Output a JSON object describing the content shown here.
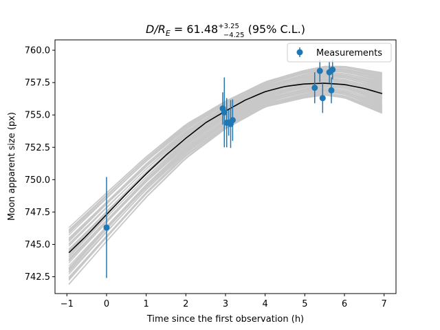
{
  "chart_data": {
    "type": "scatter",
    "title": {
      "main": "D/R",
      "sub": "E",
      "eq": " = 61.48",
      "sup_err": "+3.25",
      "sub_err": "−4.25",
      "tail": " (95% C.L.)"
    },
    "xlabel": "Time since the first observation (h)",
    "ylabel": "Moon apparent size (px)",
    "xlim": [
      -1.3,
      7.3
    ],
    "ylim": [
      741.2,
      760.8
    ],
    "xticks": [
      -1,
      0,
      1,
      2,
      3,
      4,
      5,
      6,
      7
    ],
    "xtick_labels": [
      "−1",
      "0",
      "1",
      "2",
      "3",
      "4",
      "5",
      "6",
      "7"
    ],
    "yticks": [
      742.5,
      745.0,
      747.5,
      750.0,
      752.5,
      755.0,
      757.5,
      760.0
    ],
    "ytick_labels": [
      "742.5",
      "745.0",
      "747.5",
      "750.0",
      "752.5",
      "755.0",
      "757.5",
      "760.0"
    ],
    "grid": false,
    "legend": {
      "position": "top-right",
      "entries": [
        "Measurements"
      ]
    },
    "colors": {
      "points": "#1f77b4",
      "fit": "#000000",
      "samples": "#c8c8c8"
    },
    "best_fit": {
      "x": [
        -0.95,
        -0.5,
        0,
        0.5,
        1,
        1.5,
        2,
        2.5,
        3,
        3.5,
        4,
        4.5,
        5,
        5.5,
        6,
        6.5,
        6.95
      ],
      "y": [
        744.35,
        745.7,
        747.3,
        748.9,
        750.45,
        751.9,
        753.2,
        754.4,
        755.3,
        756.15,
        756.8,
        757.2,
        757.4,
        757.45,
        757.35,
        757.05,
        756.65
      ]
    },
    "band": {
      "x": [
        -0.95,
        0,
        1,
        2,
        3,
        4,
        5,
        5.5,
        6,
        6.95
      ],
      "upper": [
        746.3,
        749.0,
        751.8,
        754.3,
        756.1,
        757.6,
        758.5,
        758.8,
        758.8,
        758.3
      ],
      "lower": [
        741.9,
        745.2,
        748.6,
        751.6,
        753.9,
        755.6,
        756.3,
        756.5,
        756.3,
        755.1
      ]
    },
    "measurements": [
      {
        "x": 0.0,
        "y": 746.3,
        "err": 3.9
      },
      {
        "x": 2.93,
        "y": 755.5,
        "err": 1.25
      },
      {
        "x": 2.97,
        "y": 755.2,
        "err": 2.7
      },
      {
        "x": 3.03,
        "y": 754.4,
        "err": 1.9
      },
      {
        "x": 3.08,
        "y": 754.4,
        "err": 1.0
      },
      {
        "x": 3.13,
        "y": 754.3,
        "err": 1.85
      },
      {
        "x": 3.18,
        "y": 754.6,
        "err": 1.6
      },
      {
        "x": 5.25,
        "y": 757.1,
        "err": 1.2
      },
      {
        "x": 5.38,
        "y": 758.4,
        "err": 0.85
      },
      {
        "x": 5.45,
        "y": 756.3,
        "err": 1.15
      },
      {
        "x": 5.62,
        "y": 758.3,
        "err": 0.85
      },
      {
        "x": 5.67,
        "y": 756.9,
        "err": 1.0
      },
      {
        "x": 5.7,
        "y": 758.5,
        "err": 0.75
      }
    ]
  }
}
